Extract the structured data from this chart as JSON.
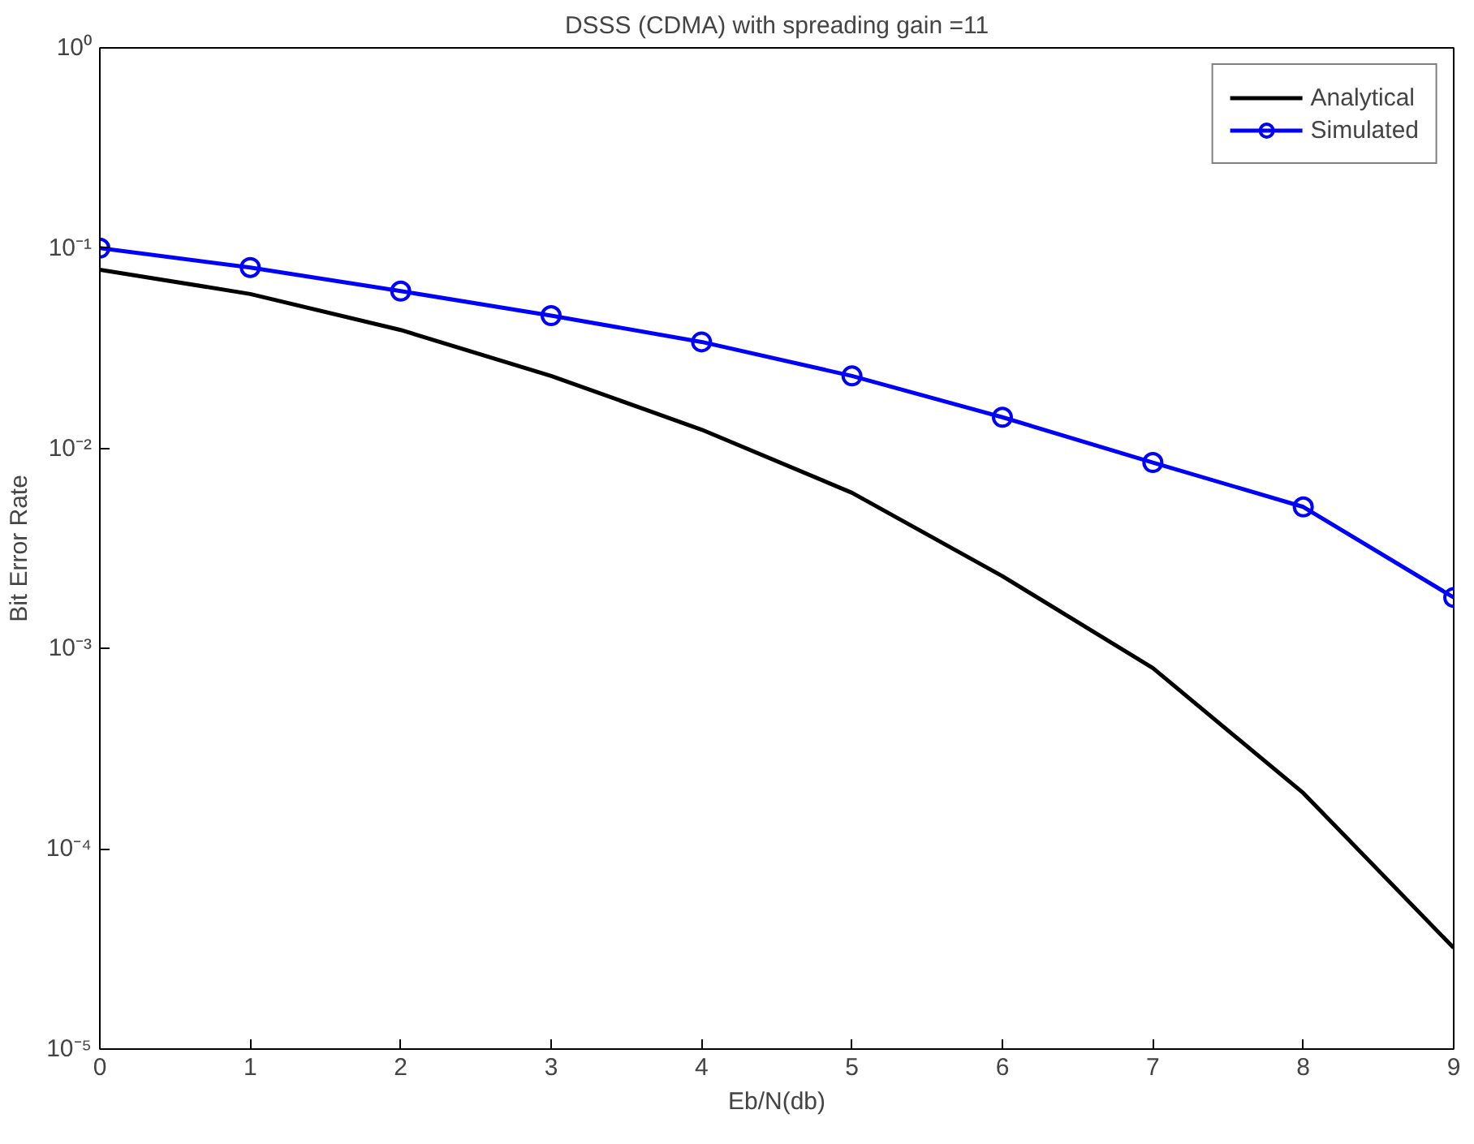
{
  "chart_data": {
    "type": "line",
    "title": "DSSS (CDMA) with spreading gain =11",
    "xlabel": "Eb/N(db)",
    "ylabel": "Bit Error Rate",
    "log": "y",
    "grid": false,
    "legend": "top right",
    "x": [
      0,
      1,
      2,
      3,
      4,
      5,
      6,
      7,
      8,
      9
    ],
    "xlim": [
      0,
      9
    ],
    "xticks": [
      0,
      1,
      2,
      3,
      4,
      5,
      6,
      7,
      8,
      9
    ],
    "ylim": [
      1e-05,
      1
    ],
    "yticks": [
      {
        "value": 1e-05,
        "label": "10⁻⁵"
      },
      {
        "value": 0.0001,
        "label": "10⁻⁴"
      },
      {
        "value": 0.001,
        "label": "10⁻³"
      },
      {
        "value": 0.01,
        "label": "10⁻²"
      },
      {
        "value": 0.1,
        "label": "10⁻¹"
      },
      {
        "value": 1,
        "label": "10⁰"
      }
    ],
    "series": [
      {
        "name": "Analytical",
        "color": "#000000",
        "marker": "none",
        "values": [
          0.078,
          0.059,
          0.039,
          0.023,
          0.0124,
          0.006,
          0.0023,
          0.0008,
          0.00019,
          3.2e-05
        ]
      },
      {
        "name": "Simulated",
        "color": "#0000ff",
        "marker": "circle",
        "values": [
          0.1,
          0.08,
          0.061,
          0.046,
          0.034,
          0.023,
          0.0143,
          0.0085,
          0.0051,
          0.0018
        ]
      }
    ]
  }
}
